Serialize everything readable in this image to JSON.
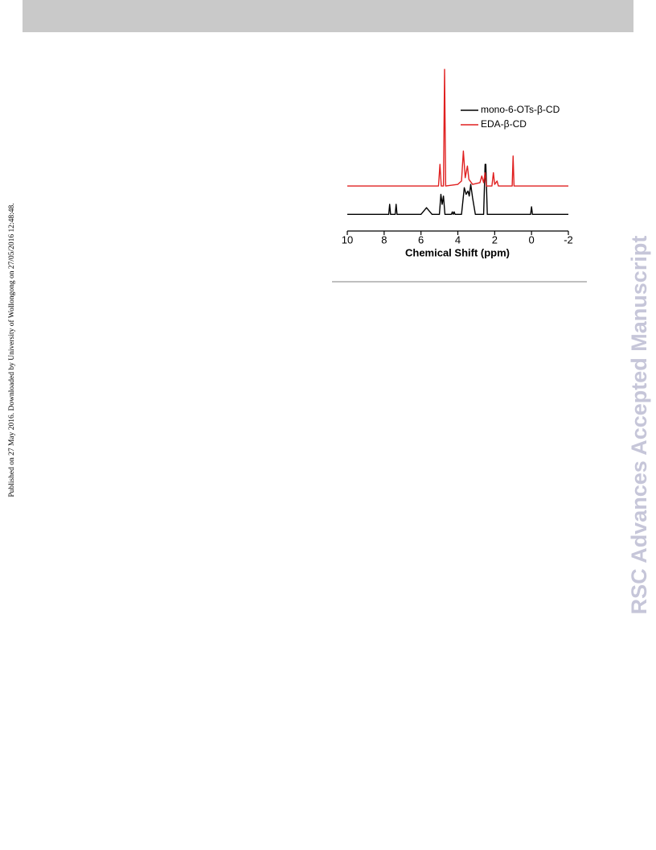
{
  "sidebar_text": "Published on 27 May 2016. Downloaded by University of Wollongong on 27/05/2016 12:48:48.",
  "watermark": "RSC Advances Accepted Manuscript",
  "chart_data": {
    "type": "line",
    "xlabel": "Chemical Shift (ppm)",
    "xlim": [
      10,
      -2
    ],
    "xticks": [
      10,
      8,
      6,
      4,
      2,
      0,
      -2
    ],
    "ylim": [
      0,
      100
    ],
    "legend": "upper right",
    "series": [
      {
        "name": "mono-6-OTs-β-CD",
        "color": "#000000",
        "x": [
          10,
          7.75,
          7.7,
          7.65,
          7.4,
          7.35,
          7.3,
          6.0,
          5.7,
          5.4,
          5.0,
          4.92,
          4.85,
          4.78,
          4.7,
          4.35,
          4.3,
          4.25,
          4.2,
          4.15,
          3.8,
          3.65,
          3.55,
          3.45,
          3.38,
          3.3,
          3.2,
          3.05,
          2.6,
          2.52,
          2.48,
          2.4,
          0.05,
          0,
          -0.05,
          -2
        ],
        "values": [
          10,
          10,
          16,
          10,
          10,
          16,
          10,
          10,
          14,
          10,
          10,
          22,
          16,
          21,
          10,
          10,
          11.5,
          10,
          11.5,
          10,
          10,
          26,
          22,
          24,
          21,
          28,
          20,
          10,
          10,
          40,
          40,
          10,
          10,
          14.5,
          10,
          10
        ]
      },
      {
        "name": "EDA-β-CD",
        "color": "#e02020",
        "x": [
          10,
          5.05,
          4.97,
          4.9,
          4.78,
          4.72,
          4.66,
          4.0,
          3.8,
          3.7,
          3.6,
          3.48,
          3.4,
          3.2,
          2.8,
          2.7,
          2.6,
          2.52,
          2.45,
          2.15,
          2.07,
          2.0,
          1.87,
          1.8,
          1.05,
          1.0,
          0.95,
          -2
        ],
        "values": [
          27,
          27,
          40,
          27,
          27,
          97,
          27,
          28,
          30,
          48,
          32,
          39,
          31,
          28,
          29,
          33,
          29,
          35,
          27,
          27,
          35,
          28,
          30,
          27,
          27,
          45,
          27,
          27
        ]
      }
    ]
  }
}
